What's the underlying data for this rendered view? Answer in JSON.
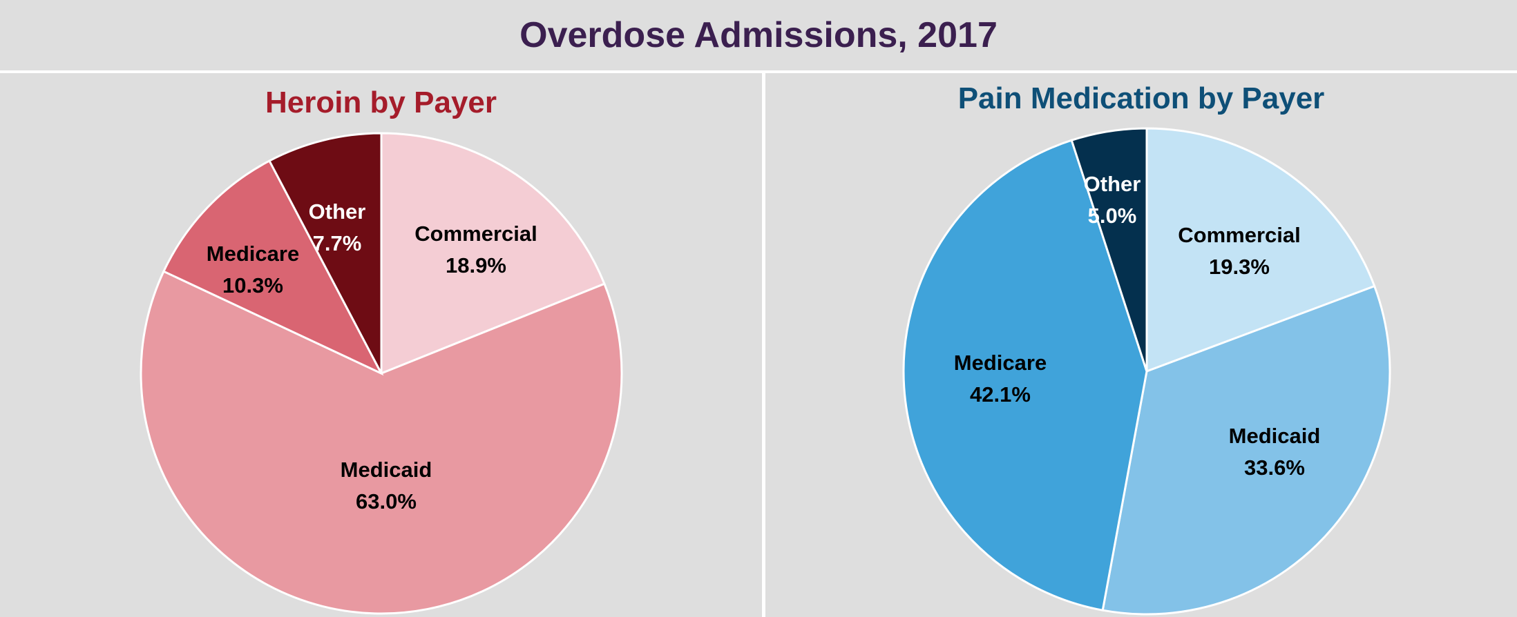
{
  "title": "Overdose Admissions, 2017",
  "chart_data": [
    {
      "type": "pie",
      "title": "Heroin by Payer",
      "title_color": "#a51c2a",
      "slices": [
        {
          "label": "Commercial",
          "value": 18.9,
          "display": "18.9%",
          "color": "#f4cdd4",
          "text_color": "#000000"
        },
        {
          "label": "Medicaid",
          "value": 63.0,
          "display": "63.0%",
          "color": "#e899a1",
          "text_color": "#000000"
        },
        {
          "label": "Medicare",
          "value": 10.3,
          "display": "10.3%",
          "color": "#d96572",
          "text_color": "#000000"
        },
        {
          "label": "Other",
          "value": 7.7,
          "display": "7.7%",
          "color": "#6e0c14",
          "text_color": "#ffffff"
        }
      ]
    },
    {
      "type": "pie",
      "title": "Pain Medication by Payer",
      "title_color": "#0e4f77",
      "slices": [
        {
          "label": "Commercial",
          "value": 19.3,
          "display": "19.3%",
          "color": "#c3e3f5",
          "text_color": "#000000"
        },
        {
          "label": "Medicaid",
          "value": 33.6,
          "display": "33.6%",
          "color": "#83c2e8",
          "text_color": "#000000"
        },
        {
          "label": "Medicare",
          "value": 42.1,
          "display": "42.1%",
          "color": "#40a3da",
          "text_color": "#000000"
        },
        {
          "label": "Other",
          "value": 5.0,
          "display": "5.0%",
          "color": "#04304e",
          "text_color": "#ffffff"
        }
      ]
    }
  ]
}
